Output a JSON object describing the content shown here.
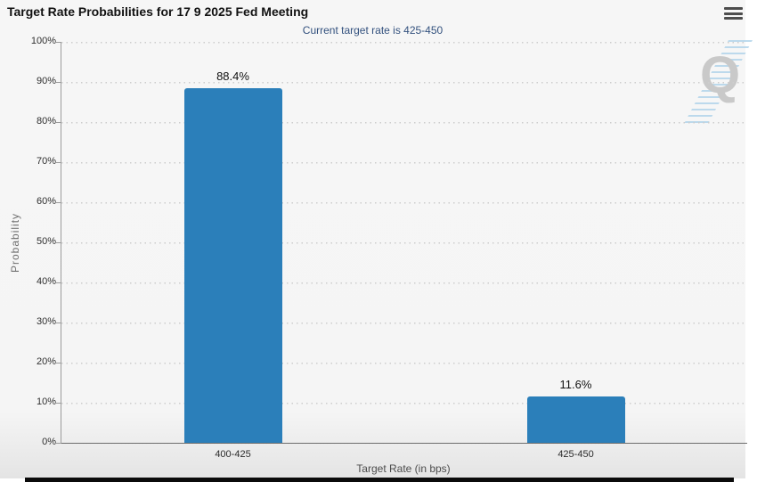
{
  "header": {
    "title": "Target Rate Probabilities for 17 9 2025 Fed Meeting",
    "menu_icon": "hamburger-icon"
  },
  "chart_data": {
    "type": "bar",
    "title": "Target Rate Probabilities for 17 9 2025 Fed Meeting",
    "subtitle": "Current target rate is 425-450",
    "categories": [
      "400-425",
      "425-450"
    ],
    "values": [
      88.4,
      11.6
    ],
    "value_labels": [
      "88.4%",
      "11.6%"
    ],
    "xlabel": "Target Rate (in bps)",
    "ylabel": "Probability",
    "ylim": [
      0,
      100
    ],
    "ytick_step": 10,
    "yticks": [
      "0%",
      "10%",
      "20%",
      "30%",
      "40%",
      "50%",
      "60%",
      "70%",
      "80%",
      "90%",
      "100%"
    ],
    "grid": "dotted-horizontal",
    "legend": "none",
    "bar_color": "#2b7fba",
    "subtitle_color": "#33517e",
    "watermark_letter": "Q"
  }
}
